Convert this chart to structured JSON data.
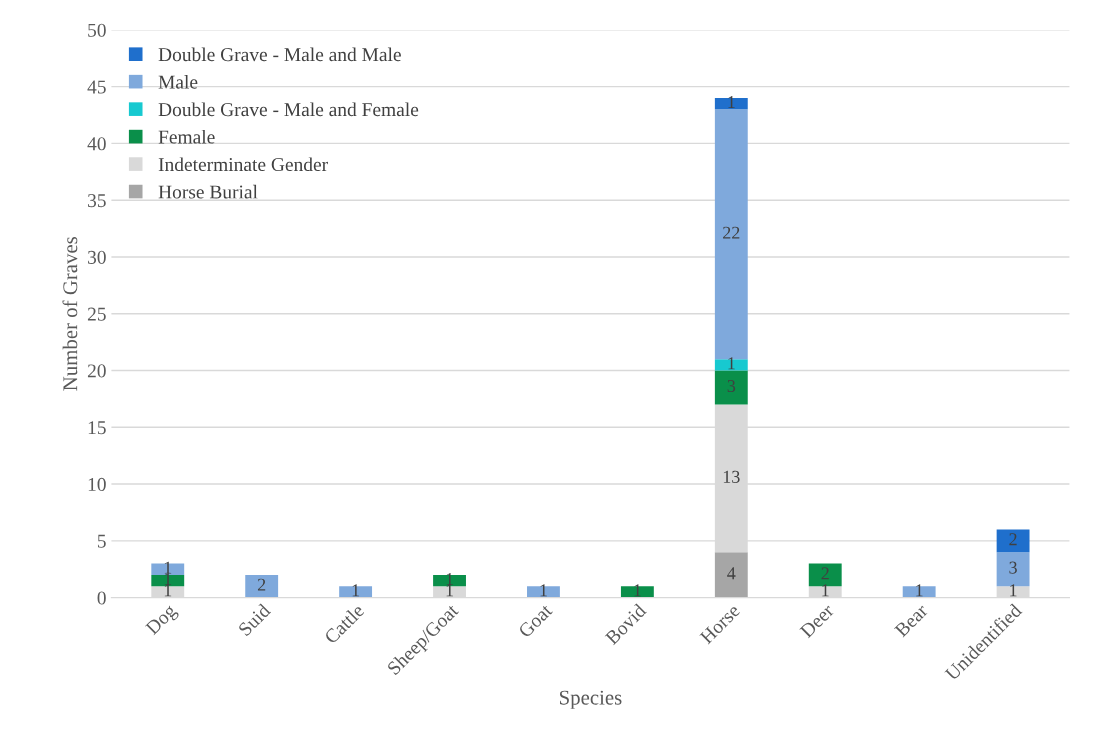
{
  "chart_data": {
    "type": "bar",
    "stacked": true,
    "xlabel": "Species",
    "ylabel": "Number of Graves",
    "categories": [
      "Dog",
      "Suid",
      "Cattle",
      "Sheep/Goat",
      "Goat",
      "Bovid",
      "Horse",
      "Deer",
      "Bear",
      "Unidentified"
    ],
    "series": [
      {
        "name": "Horse Burial",
        "color": "#a6a6a6",
        "values": [
          null,
          null,
          null,
          null,
          null,
          null,
          4,
          null,
          null,
          null
        ]
      },
      {
        "name": "Indeterminate Gender",
        "color": "#d9d9d9",
        "values": [
          1,
          null,
          null,
          1,
          null,
          null,
          13,
          1,
          null,
          1
        ]
      },
      {
        "name": "Female",
        "color": "#0a8f4a",
        "values": [
          1,
          null,
          null,
          1,
          null,
          1,
          3,
          2,
          null,
          null
        ]
      },
      {
        "name": "Double Grave - Male and Female",
        "color": "#17c9d0",
        "values": [
          null,
          null,
          null,
          null,
          null,
          null,
          1,
          null,
          null,
          null
        ]
      },
      {
        "name": "Male",
        "color": "#7fa9dc",
        "values": [
          1,
          2,
          1,
          null,
          1,
          null,
          22,
          null,
          1,
          3
        ]
      },
      {
        "name": "Double Grave - Male and Male",
        "color": "#1f6fcc",
        "values": [
          null,
          null,
          null,
          null,
          null,
          null,
          1,
          null,
          null,
          2
        ]
      }
    ],
    "ylim": [
      0,
      50
    ],
    "yticks": [
      0,
      5,
      10,
      15,
      20,
      25,
      30,
      35,
      40,
      45,
      50
    ],
    "grid": "y",
    "legend": "top left",
    "data_labels": true
  }
}
